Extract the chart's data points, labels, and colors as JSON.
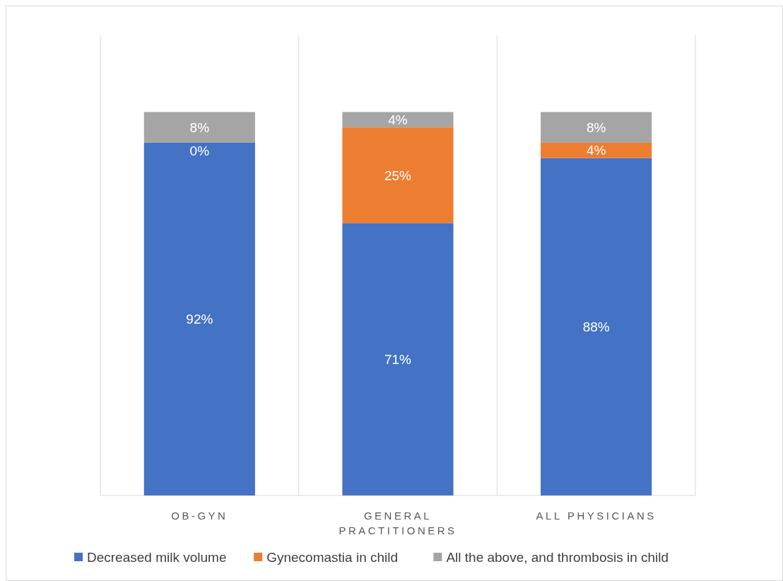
{
  "chart_data": {
    "type": "bar",
    "stacked": true,
    "categories": [
      "OB-GYN",
      "GENERAL PRACTITIONERS",
      "ALL PHYSICIANS"
    ],
    "series": [
      {
        "name": "Decreased milk volume",
        "color": "#4472c4",
        "values": [
          92,
          71,
          88
        ],
        "value_labels": [
          "92%",
          "71%",
          "88%"
        ]
      },
      {
        "name": "Gynecomastia in child",
        "color": "#ed7d31",
        "values": [
          0,
          25,
          4
        ],
        "value_labels": [
          "0%",
          "25%",
          "4%"
        ]
      },
      {
        "name": "All the above, and thrombosis in child",
        "color": "#a5a5a5",
        "values": [
          8,
          4,
          8
        ],
        "value_labels": [
          "8%",
          "4%",
          "8%"
        ]
      }
    ],
    "grid": "x",
    "legend": "bottom"
  }
}
